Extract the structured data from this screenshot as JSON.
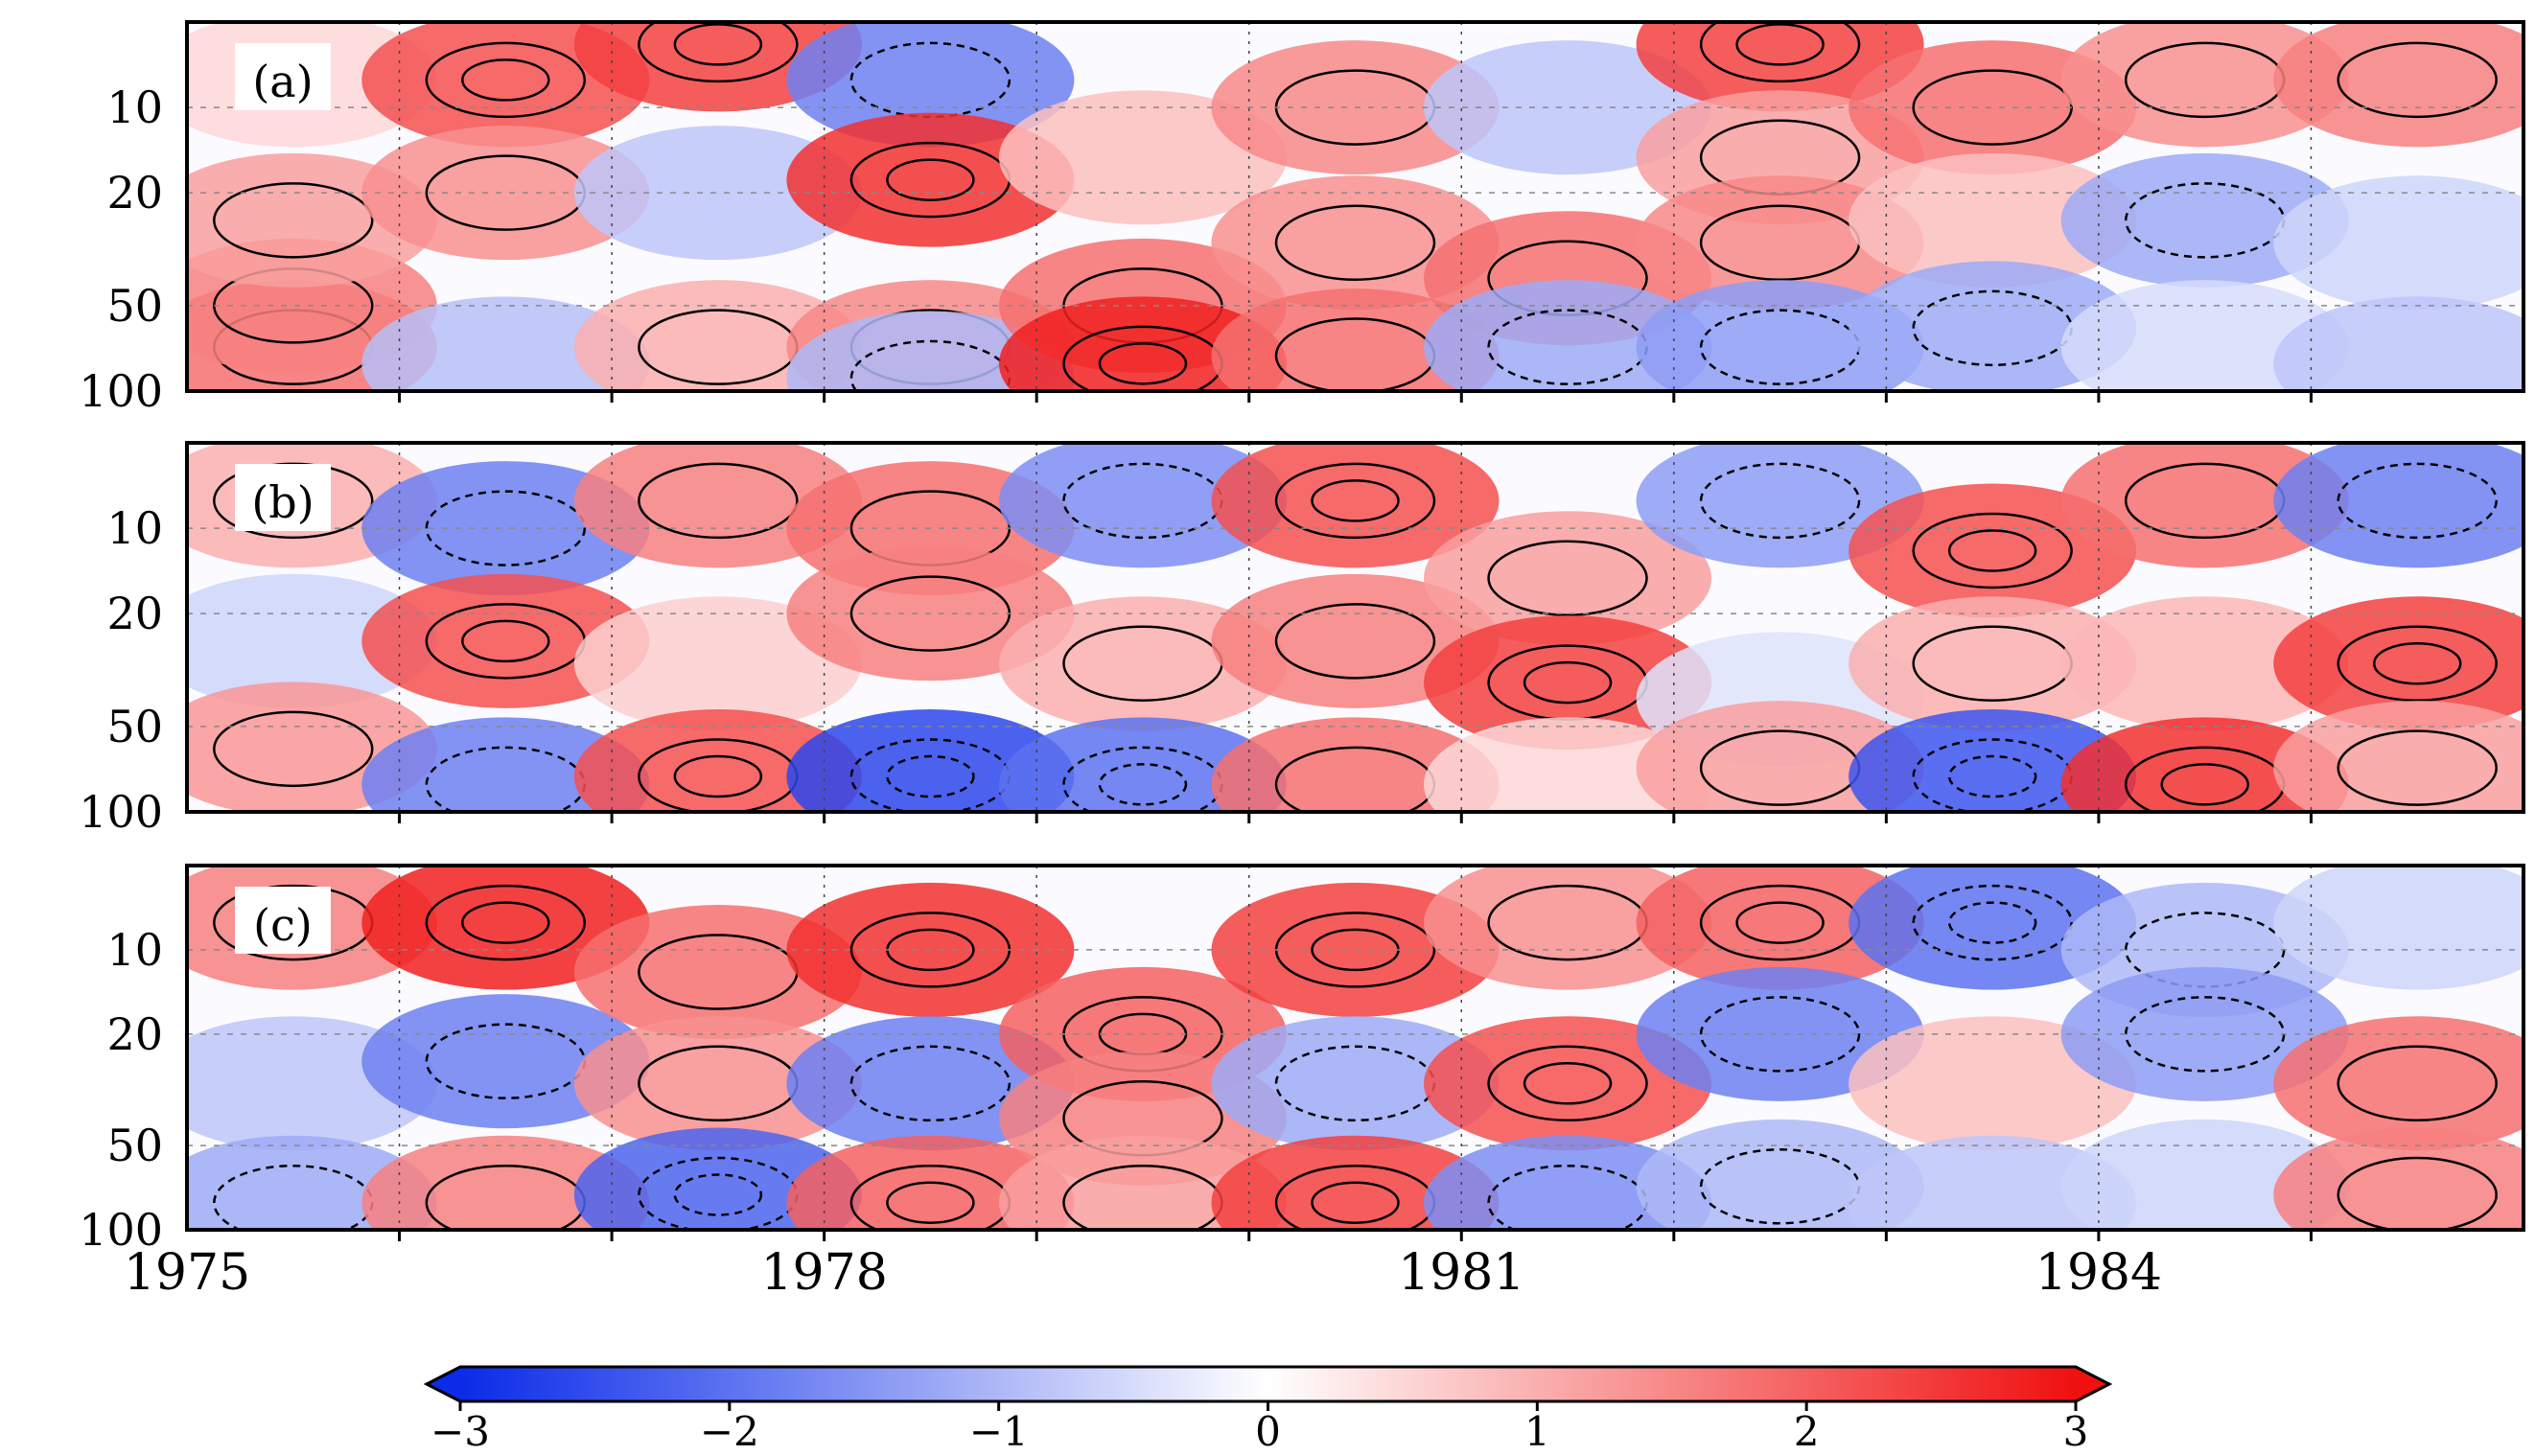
{
  "chart_data": {
    "type": "heatmap",
    "colorbar": {
      "min": -3,
      "max": 3,
      "ticks": [
        "−3",
        "−2",
        "−1",
        "0",
        "1",
        "2",
        "3"
      ],
      "tick_values": [
        -3,
        -2,
        -1,
        0,
        1,
        2,
        3
      ],
      "colors": {
        "negative": "#0b2be8",
        "neutral": "#ffffff",
        "positive": "#f01010"
      },
      "extend": "both"
    },
    "x_axis": {
      "range": [
        1975,
        1986
      ],
      "tick_labels": [
        "1975",
        "1978",
        "1981",
        "1984"
      ],
      "tick_values": [
        1975,
        1978,
        1981,
        1984
      ]
    },
    "y_axis": {
      "scale": "log",
      "reversed": true,
      "range": [
        5,
        100
      ],
      "tick_labels": [
        "10",
        "20",
        "50",
        "100"
      ],
      "tick_values": [
        10,
        20,
        50,
        100
      ]
    },
    "contour_levels": [
      -2,
      -1,
      1,
      2
    ],
    "panels": [
      {
        "label": "(a)",
        "cells": [
          [
            0,
            8,
            0.5
          ],
          [
            0,
            70,
            1.8
          ],
          [
            0,
            50,
            1.6
          ],
          [
            0,
            25,
            1.2
          ],
          [
            1,
            8,
            2.2
          ],
          [
            1,
            20,
            1.4
          ],
          [
            1,
            80,
            -0.9
          ],
          [
            2,
            6,
            2.4
          ],
          [
            2,
            20,
            -0.8
          ],
          [
            2,
            70,
            1.0
          ],
          [
            3,
            8,
            -1.8
          ],
          [
            3,
            18,
            2.6
          ],
          [
            3,
            70,
            1.5
          ],
          [
            3,
            90,
            -1.0
          ],
          [
            4,
            15,
            0.8
          ],
          [
            4,
            50,
            1.8
          ],
          [
            4,
            80,
            2.8
          ],
          [
            5,
            10,
            1.5
          ],
          [
            5,
            30,
            1.4
          ],
          [
            5,
            75,
            1.8
          ],
          [
            6,
            10,
            -0.8
          ],
          [
            6,
            40,
            1.8
          ],
          [
            6,
            70,
            -1.2
          ],
          [
            7,
            6,
            2.4
          ],
          [
            7,
            15,
            1.2
          ],
          [
            7,
            30,
            1.5
          ],
          [
            7,
            70,
            -1.4
          ],
          [
            8,
            10,
            1.8
          ],
          [
            8,
            25,
            0.8
          ],
          [
            8,
            60,
            -1.2
          ],
          [
            9,
            8,
            1.4
          ],
          [
            9,
            25,
            -1.2
          ],
          [
            9,
            70,
            -0.5
          ],
          [
            10,
            8,
            1.6
          ],
          [
            10,
            30,
            -0.6
          ],
          [
            10,
            80,
            -0.8
          ]
        ]
      },
      {
        "label": "(b)",
        "cells": [
          [
            0,
            8,
            1.0
          ],
          [
            0,
            25,
            -0.6
          ],
          [
            0,
            60,
            1.3
          ],
          [
            1,
            10,
            -1.8
          ],
          [
            1,
            25,
            2.2
          ],
          [
            1,
            80,
            -1.8
          ],
          [
            2,
            8,
            1.6
          ],
          [
            2,
            30,
            0.6
          ],
          [
            2,
            75,
            2.2
          ],
          [
            3,
            10,
            1.8
          ],
          [
            3,
            20,
            1.6
          ],
          [
            3,
            75,
            -2.6
          ],
          [
            4,
            8,
            -1.6
          ],
          [
            4,
            30,
            1.0
          ],
          [
            4,
            80,
            -2.0
          ],
          [
            5,
            8,
            2.2
          ],
          [
            5,
            25,
            1.6
          ],
          [
            5,
            80,
            1.8
          ],
          [
            6,
            15,
            1.2
          ],
          [
            6,
            35,
            2.4
          ],
          [
            6,
            80,
            0.5
          ],
          [
            7,
            8,
            -1.4
          ],
          [
            7,
            40,
            -0.4
          ],
          [
            7,
            70,
            1.2
          ],
          [
            8,
            12,
            2.2
          ],
          [
            8,
            30,
            1.0
          ],
          [
            8,
            75,
            -2.4
          ],
          [
            9,
            8,
            1.8
          ],
          [
            9,
            30,
            0.9
          ],
          [
            9,
            80,
            2.6
          ],
          [
            10,
            8,
            -1.8
          ],
          [
            10,
            30,
            2.4
          ],
          [
            10,
            70,
            1.2
          ]
        ]
      },
      {
        "label": "(c)",
        "cells": [
          [
            0,
            8,
            1.6
          ],
          [
            0,
            30,
            -0.8
          ],
          [
            0,
            80,
            -1.2
          ],
          [
            1,
            8,
            2.8
          ],
          [
            1,
            25,
            -1.8
          ],
          [
            1,
            80,
            1.6
          ],
          [
            2,
            12,
            1.8
          ],
          [
            2,
            30,
            1.4
          ],
          [
            2,
            75,
            -2.2
          ],
          [
            3,
            10,
            2.6
          ],
          [
            3,
            30,
            -1.8
          ],
          [
            3,
            80,
            2.0
          ],
          [
            4,
            20,
            2.0
          ],
          [
            4,
            40,
            1.6
          ],
          [
            4,
            80,
            1.2
          ],
          [
            5,
            10,
            2.4
          ],
          [
            5,
            30,
            -1.2
          ],
          [
            5,
            80,
            2.4
          ],
          [
            6,
            8,
            1.4
          ],
          [
            6,
            30,
            2.2
          ],
          [
            6,
            80,
            -1.6
          ],
          [
            7,
            8,
            2.0
          ],
          [
            7,
            20,
            -1.8
          ],
          [
            7,
            70,
            -1.0
          ],
          [
            8,
            8,
            -2.0
          ],
          [
            8,
            30,
            0.8
          ],
          [
            8,
            80,
            -0.8
          ],
          [
            9,
            10,
            -1.0
          ],
          [
            9,
            20,
            -1.4
          ],
          [
            9,
            70,
            -0.6
          ],
          [
            10,
            8,
            -0.6
          ],
          [
            10,
            30,
            1.8
          ],
          [
            10,
            75,
            1.6
          ]
        ]
      }
    ]
  }
}
